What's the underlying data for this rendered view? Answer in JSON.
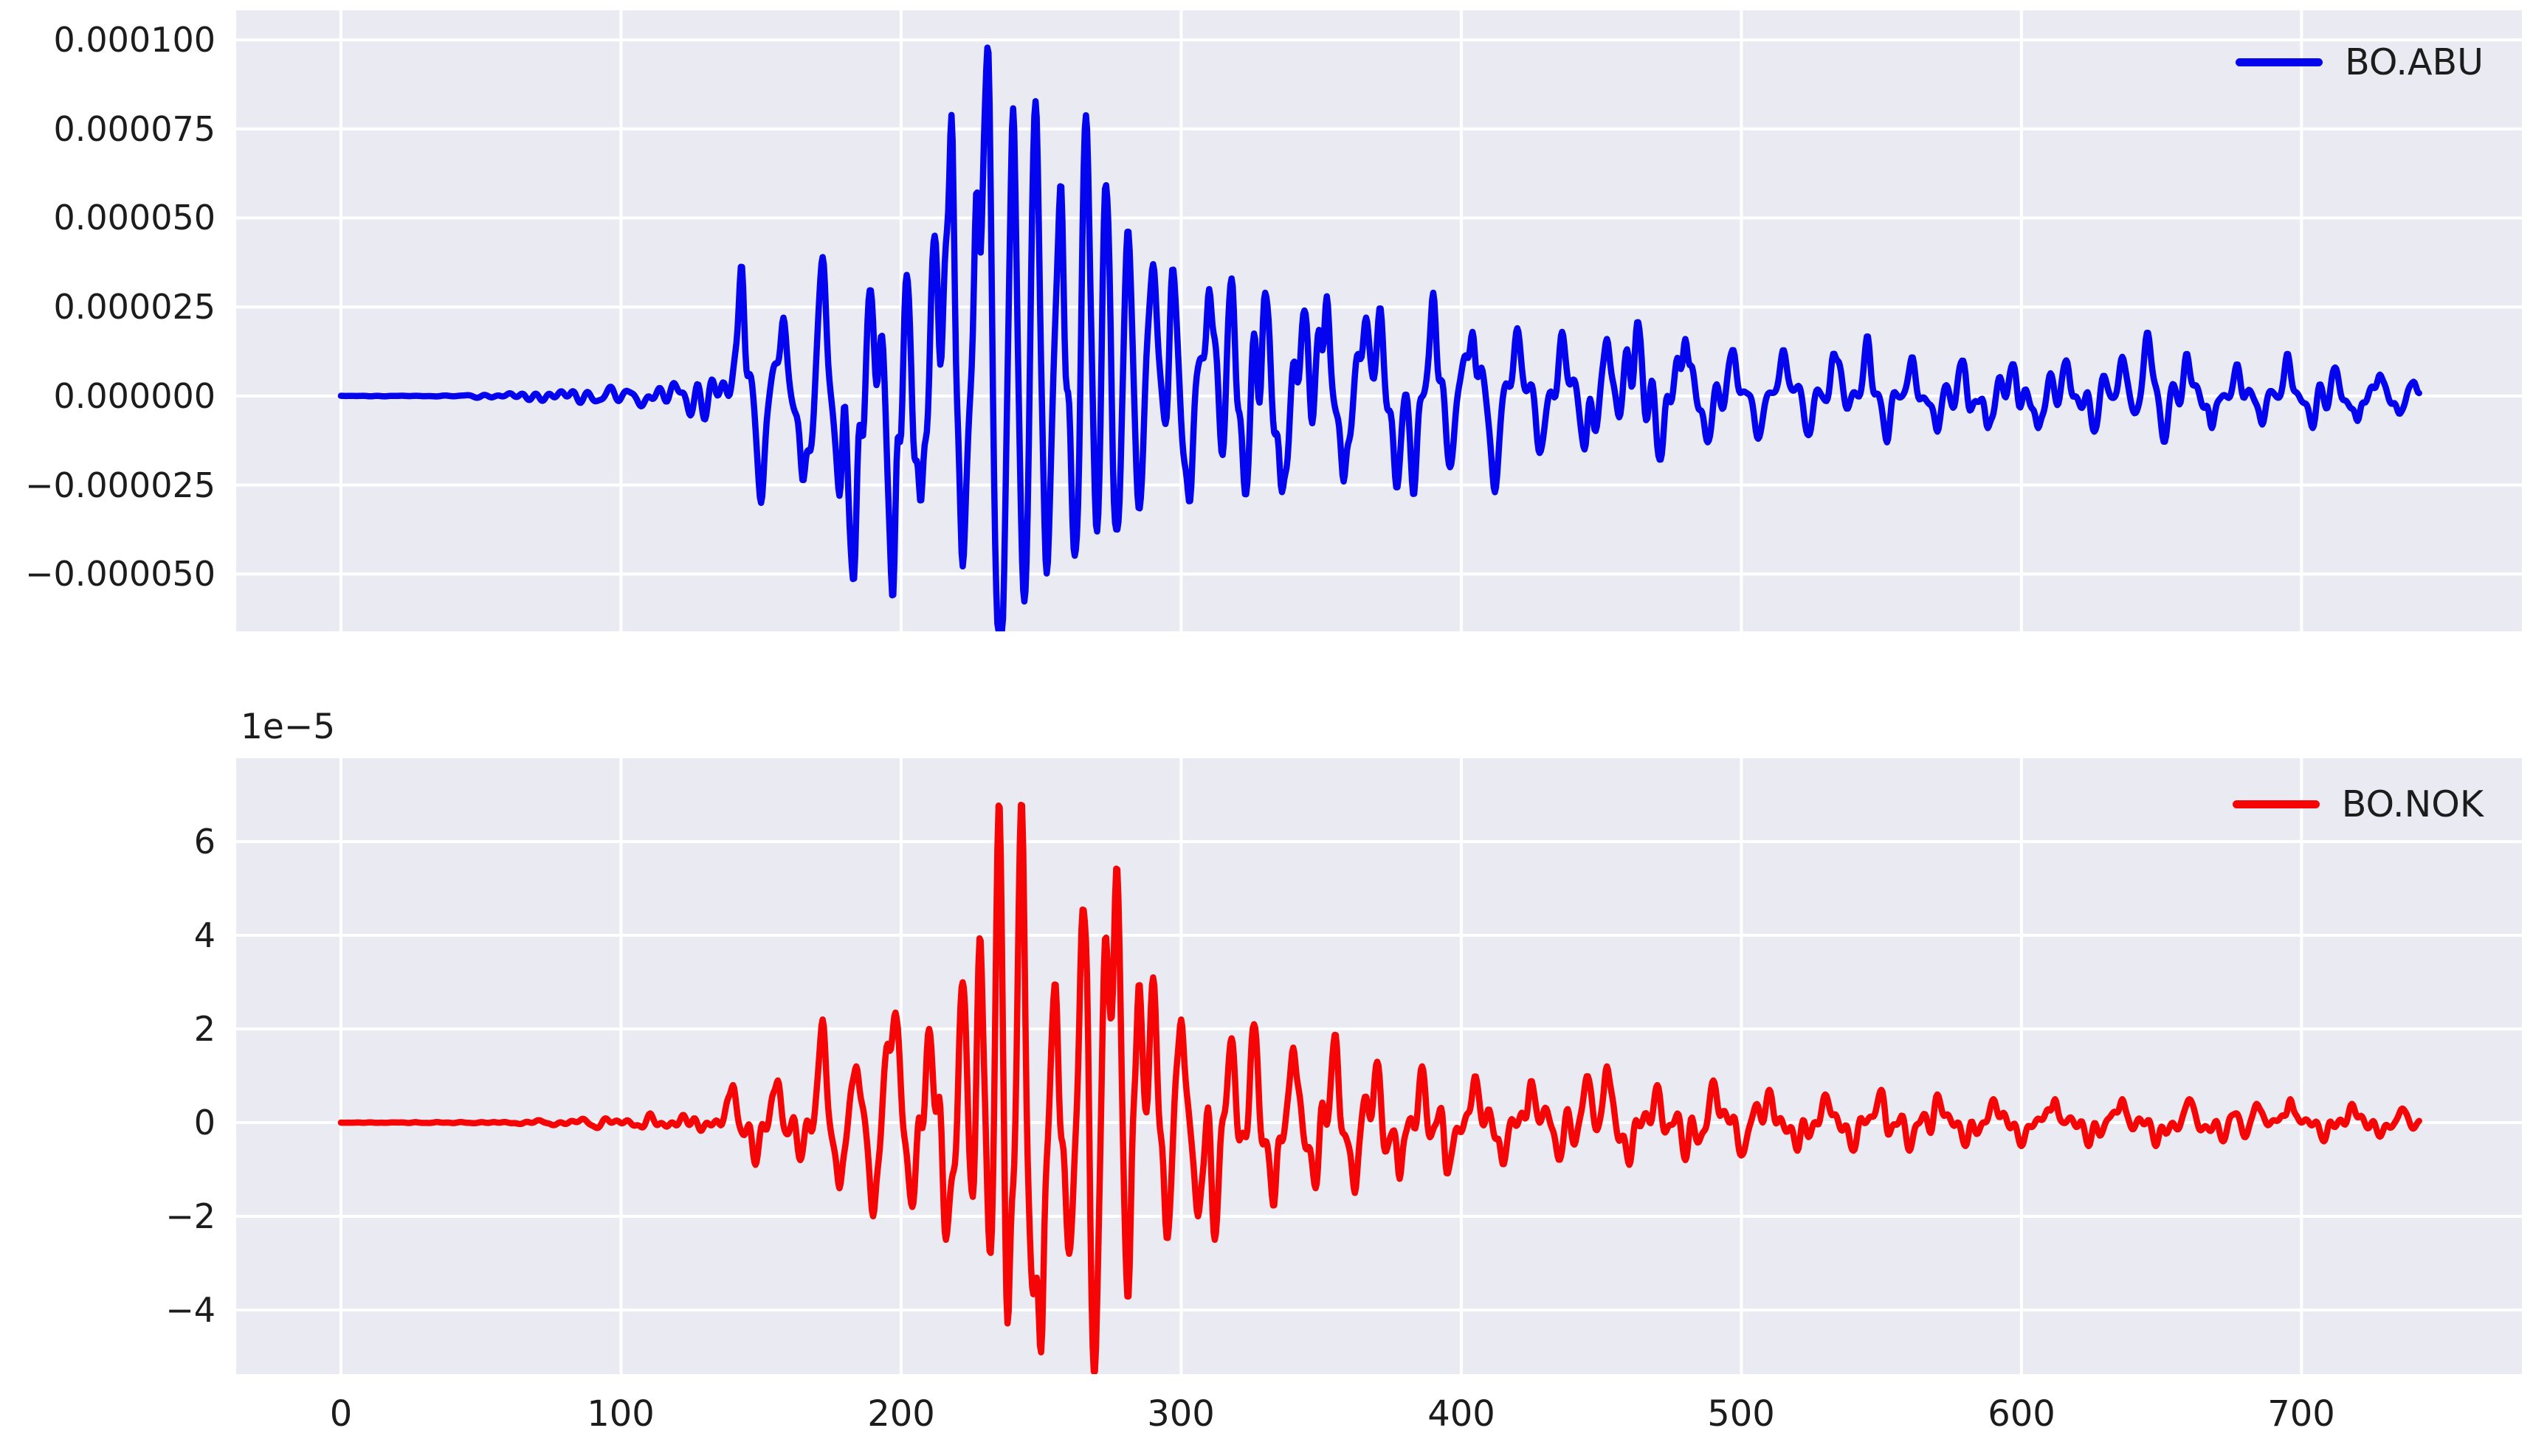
{
  "figure": {
    "background": "#ffffff",
    "axes_background": "#eaeaf2",
    "grid_color": "#ffffff",
    "text_color": "#1c1c1c"
  },
  "chart_data": [
    {
      "type": "line",
      "series_name": "BO.ABU",
      "legend": {
        "label": "BO.ABU"
      },
      "color": "#0404ee",
      "xlim": [
        -37.4,
        778.7
      ],
      "ylim": [
        -6.61e-05,
        0.0001083
      ],
      "grid": true,
      "legend_position": "upper right",
      "x_ticks": [
        0,
        100,
        200,
        300,
        400,
        500,
        600,
        700
      ],
      "x_tick_labels": [
        "0",
        "100",
        "200",
        "300",
        "400",
        "500",
        "600",
        "700"
      ],
      "x_tick_labels_visible": false,
      "y_ticks": [
        0.0001,
        7.5e-05,
        5e-05,
        2.5e-05,
        0,
        -2.5e-05,
        -5e-05
      ],
      "y_tick_labels": [
        "0.000100",
        "0.000075",
        "0.000050",
        "0.000025",
        "0.000000",
        "−0.000025",
        "−0.000050"
      ],
      "offset_label": "",
      "duration": 742,
      "peak": {
        "t": 231,
        "value": 0.0001
      },
      "trough": {
        "t": 236,
        "value": -6.2e-05
      },
      "envelope_1e6": [
        [
          0,
          0.15
        ],
        [
          40,
          0.3
        ],
        [
          55,
          1
        ],
        [
          70,
          2.5
        ],
        [
          80,
          3.5
        ],
        [
          95,
          4
        ],
        [
          105,
          6
        ],
        [
          115,
          8
        ],
        [
          125,
          11
        ],
        [
          135,
          16
        ],
        [
          145,
          22
        ],
        [
          155,
          18
        ],
        [
          165,
          24
        ],
        [
          175,
          30
        ],
        [
          185,
          38
        ],
        [
          195,
          40
        ],
        [
          205,
          42
        ],
        [
          215,
          55
        ],
        [
          225,
          65
        ],
        [
          232,
          75
        ],
        [
          240,
          70
        ],
        [
          250,
          65
        ],
        [
          260,
          60
        ],
        [
          270,
          55
        ],
        [
          280,
          45
        ],
        [
          290,
          38
        ],
        [
          300,
          34
        ],
        [
          315,
          30
        ],
        [
          330,
          28
        ],
        [
          345,
          25
        ],
        [
          360,
          23
        ],
        [
          375,
          22
        ],
        [
          390,
          22
        ],
        [
          405,
          18
        ],
        [
          420,
          17
        ],
        [
          435,
          15
        ],
        [
          450,
          14
        ],
        [
          465,
          17
        ],
        [
          480,
          14
        ],
        [
          495,
          12
        ],
        [
          510,
          11
        ],
        [
          525,
          11
        ],
        [
          545,
          13
        ],
        [
          560,
          10
        ],
        [
          580,
          9
        ],
        [
          600,
          8
        ],
        [
          620,
          8
        ],
        [
          640,
          12
        ],
        [
          655,
          10
        ],
        [
          675,
          8
        ],
        [
          695,
          9
        ],
        [
          710,
          7
        ],
        [
          725,
          5
        ],
        [
          740,
          3.5
        ],
        [
          742,
          3
        ]
      ],
      "spikes_1e6": [
        [
          143,
          37
        ],
        [
          150,
          -30
        ],
        [
          158,
          22
        ],
        [
          165,
          -24
        ],
        [
          172,
          39
        ],
        [
          178,
          -28
        ],
        [
          183,
          -52
        ],
        [
          189,
          30
        ],
        [
          197,
          -57
        ],
        [
          202,
          34
        ],
        [
          207,
          -30
        ],
        [
          212,
          45
        ],
        [
          218,
          79
        ],
        [
          222,
          -48
        ],
        [
          227,
          58
        ],
        [
          231,
          100
        ],
        [
          234,
          -45
        ],
        [
          236,
          -62
        ],
        [
          240,
          81
        ],
        [
          244,
          -58
        ],
        [
          248,
          83
        ],
        [
          252,
          -50
        ],
        [
          257,
          60
        ],
        [
          262,
          -45
        ],
        [
          266,
          79
        ],
        [
          270,
          -40
        ],
        [
          273,
          61
        ],
        [
          277,
          -38
        ],
        [
          281,
          47
        ],
        [
          285,
          -32
        ],
        [
          290,
          37
        ],
        [
          297,
          36
        ],
        [
          303,
          -30
        ],
        [
          310,
          30
        ],
        [
          318,
          33
        ],
        [
          323,
          -28
        ],
        [
          330,
          29
        ],
        [
          336,
          -27
        ],
        [
          344,
          24
        ],
        [
          352,
          28
        ],
        [
          358,
          -24
        ],
        [
          366,
          22
        ],
        [
          371,
          25
        ],
        [
          377,
          -26
        ],
        [
          383,
          -28
        ],
        [
          390,
          29
        ],
        [
          396,
          -20
        ],
        [
          404,
          18
        ],
        [
          412,
          -27
        ],
        [
          420,
          19
        ],
        [
          428,
          -16
        ],
        [
          436,
          18
        ],
        [
          444,
          -15
        ],
        [
          452,
          16
        ],
        [
          463,
          21
        ],
        [
          471,
          -18
        ],
        [
          480,
          16
        ],
        [
          488,
          -13
        ],
        [
          497,
          13
        ],
        [
          506,
          -12
        ],
        [
          515,
          13
        ],
        [
          524,
          -11
        ],
        [
          533,
          12
        ],
        [
          545,
          17
        ],
        [
          552,
          -13
        ],
        [
          561,
          11
        ],
        [
          570,
          -10
        ],
        [
          579,
          10
        ],
        [
          588,
          -9
        ],
        [
          597,
          9
        ],
        [
          606,
          -9
        ],
        [
          616,
          10
        ],
        [
          626,
          -10
        ],
        [
          636,
          11
        ],
        [
          645,
          18
        ],
        [
          651,
          -13
        ],
        [
          659,
          12
        ],
        [
          668,
          -9
        ],
        [
          677,
          9
        ],
        [
          686,
          -8
        ],
        [
          695,
          12
        ],
        [
          704,
          -9
        ],
        [
          712,
          8
        ],
        [
          720,
          -7
        ],
        [
          728,
          6
        ],
        [
          735,
          -5
        ],
        [
          740,
          4
        ]
      ],
      "synth": {
        "seed": 7,
        "dt": 0.4,
        "components": 7,
        "freq_range": [
          0.05,
          0.28
        ],
        "noise_level": 0.75,
        "spike_width": 1.6,
        "unit": 1e-06
      }
    },
    {
      "type": "line",
      "series_name": "BO.NOK",
      "legend": {
        "label": "BO.NOK"
      },
      "color": "#f50505",
      "xlim": [
        -37.4,
        778.7
      ],
      "ylim": [
        -5.37e-05,
        7.78e-05
      ],
      "grid": true,
      "legend_position": "upper right",
      "x_ticks": [
        0,
        100,
        200,
        300,
        400,
        500,
        600,
        700
      ],
      "x_tick_labels": [
        "0",
        "100",
        "200",
        "300",
        "400",
        "500",
        "600",
        "700"
      ],
      "x_tick_labels_visible": true,
      "y_ticks": [
        6e-05,
        4e-05,
        2e-05,
        0,
        -2e-05,
        -4e-05
      ],
      "y_tick_labels": [
        "6",
        "4",
        "2",
        "0",
        "−2",
        "−4"
      ],
      "offset_label": "1e−5",
      "duration": 742,
      "peak": {
        "t": 235,
        "value": 7.1e-05
      },
      "trough": {
        "t": 269,
        "value": -5.4e-05
      },
      "envelope_1e6": [
        [
          0,
          0.12
        ],
        [
          50,
          0.3
        ],
        [
          70,
          0.8
        ],
        [
          90,
          1.5
        ],
        [
          100,
          2
        ],
        [
          110,
          3
        ],
        [
          120,
          4
        ],
        [
          130,
          5
        ],
        [
          140,
          6
        ],
        [
          150,
          8
        ],
        [
          160,
          8
        ],
        [
          170,
          11
        ],
        [
          180,
          11
        ],
        [
          190,
          14
        ],
        [
          200,
          16
        ],
        [
          210,
          18
        ],
        [
          220,
          24
        ],
        [
          228,
          32
        ],
        [
          236,
          45
        ],
        [
          244,
          42
        ],
        [
          252,
          36
        ],
        [
          260,
          30
        ],
        [
          268,
          38
        ],
        [
          276,
          36
        ],
        [
          284,
          28
        ],
        [
          292,
          24
        ],
        [
          300,
          20
        ],
        [
          310,
          18
        ],
        [
          320,
          17
        ],
        [
          330,
          15
        ],
        [
          340,
          14
        ],
        [
          350,
          14
        ],
        [
          360,
          12
        ],
        [
          370,
          11
        ],
        [
          380,
          10
        ],
        [
          390,
          10
        ],
        [
          400,
          9
        ],
        [
          415,
          8
        ],
        [
          430,
          8
        ],
        [
          445,
          9
        ],
        [
          460,
          7
        ],
        [
          475,
          7
        ],
        [
          490,
          7
        ],
        [
          505,
          6
        ],
        [
          520,
          6
        ],
        [
          540,
          6
        ],
        [
          560,
          5
        ],
        [
          580,
          5
        ],
        [
          600,
          4.5
        ],
        [
          620,
          4.5
        ],
        [
          640,
          4.5
        ],
        [
          660,
          4
        ],
        [
          680,
          4
        ],
        [
          700,
          4.5
        ],
        [
          715,
          4
        ],
        [
          730,
          3
        ],
        [
          742,
          2
        ]
      ],
      "spikes_1e6": [
        [
          140,
          8
        ],
        [
          148,
          -9
        ],
        [
          156,
          9
        ],
        [
          164,
          -8
        ],
        [
          172,
          22
        ],
        [
          178,
          -14
        ],
        [
          184,
          12
        ],
        [
          190,
          -20
        ],
        [
          195,
          16
        ],
        [
          198,
          23
        ],
        [
          204,
          -18
        ],
        [
          210,
          20
        ],
        [
          216,
          -25
        ],
        [
          222,
          30
        ],
        [
          226,
          -22
        ],
        [
          228,
          44
        ],
        [
          232,
          -30
        ],
        [
          235,
          71
        ],
        [
          238,
          -45
        ],
        [
          243,
          69
        ],
        [
          247,
          -35
        ],
        [
          250,
          -48
        ],
        [
          255,
          30
        ],
        [
          260,
          -28
        ],
        [
          265,
          46
        ],
        [
          269,
          -54
        ],
        [
          273,
          40
        ],
        [
          277,
          55
        ],
        [
          281,
          -38
        ],
        [
          285,
          30
        ],
        [
          290,
          31
        ],
        [
          295,
          -25
        ],
        [
          300,
          22
        ],
        [
          306,
          -20
        ],
        [
          312,
          -25
        ],
        [
          318,
          18
        ],
        [
          326,
          21
        ],
        [
          333,
          -18
        ],
        [
          340,
          16
        ],
        [
          348,
          -14
        ],
        [
          355,
          19
        ],
        [
          362,
          -15
        ],
        [
          370,
          13
        ],
        [
          378,
          -12
        ],
        [
          386,
          12
        ],
        [
          395,
          -11
        ],
        [
          405,
          10
        ],
        [
          415,
          -9
        ],
        [
          425,
          9
        ],
        [
          435,
          -8
        ],
        [
          445,
          10
        ],
        [
          452,
          12
        ],
        [
          460,
          -9
        ],
        [
          470,
          8
        ],
        [
          480,
          -8
        ],
        [
          490,
          9
        ],
        [
          500,
          -7
        ],
        [
          510,
          7
        ],
        [
          520,
          -6
        ],
        [
          530,
          6
        ],
        [
          540,
          -6
        ],
        [
          550,
          7
        ],
        [
          560,
          -6
        ],
        [
          570,
          6
        ],
        [
          580,
          -5
        ],
        [
          590,
          5
        ],
        [
          600,
          -5
        ],
        [
          612,
          5
        ],
        [
          624,
          -5
        ],
        [
          636,
          5
        ],
        [
          648,
          -5
        ],
        [
          660,
          5
        ],
        [
          672,
          -4
        ],
        [
          684,
          4
        ],
        [
          696,
          5
        ],
        [
          708,
          -4
        ],
        [
          718,
          4
        ],
        [
          728,
          -3
        ],
        [
          736,
          3
        ]
      ],
      "synth": {
        "seed": 13,
        "dt": 0.4,
        "components": 7,
        "freq_range": [
          0.05,
          0.28
        ],
        "noise_level": 0.75,
        "spike_width": 1.6,
        "unit": 1e-06
      }
    }
  ]
}
